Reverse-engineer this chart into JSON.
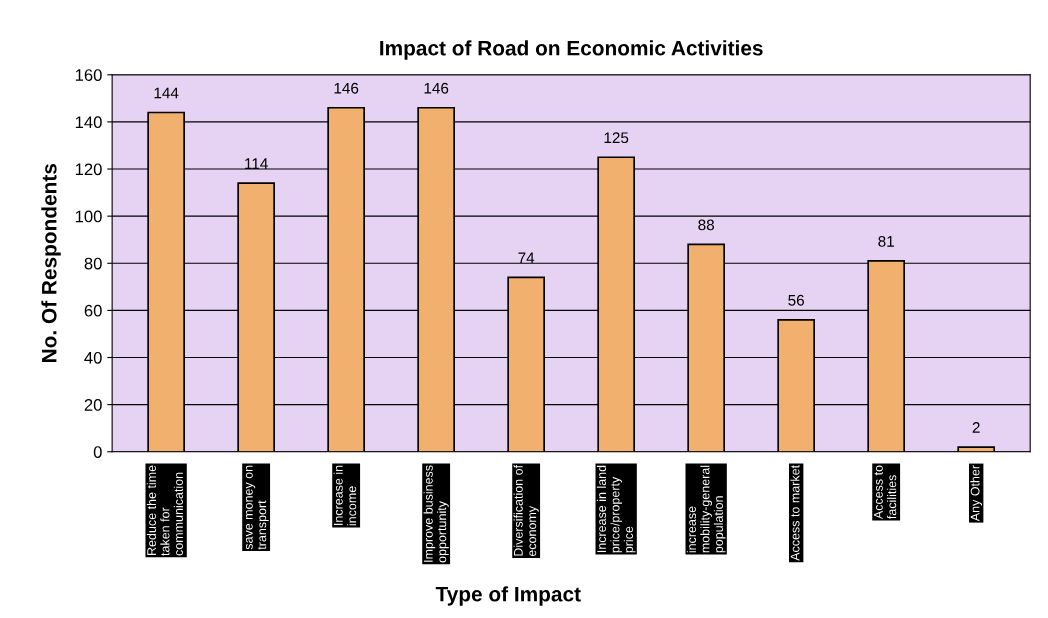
{
  "chart_data": {
    "type": "bar",
    "title": "Impact of Road on Economic Activities",
    "xlabel": "Type of Impact",
    "ylabel": "No. Of Respondents",
    "categories": [
      "Reduce the time\ntaken for\ncommunication",
      "save money on\ntransport",
      "Increase in\nincome",
      "Improve business\nopportunity",
      "Diversification of\neconomy",
      "Increase in land\nprice/property\nprice",
      "increase\nmobility-general\npopulation",
      "Access to market",
      "Access to\nfacilities",
      "Any Other"
    ],
    "values": [
      144,
      114,
      146,
      146,
      74,
      125,
      88,
      56,
      81,
      2
    ],
    "color": "#f2b06e",
    "ylim": [
      0,
      160
    ],
    "yticks": [
      0,
      20,
      40,
      60,
      80,
      100,
      120,
      140,
      160
    ],
    "grid": "y",
    "data_labels": true
  }
}
